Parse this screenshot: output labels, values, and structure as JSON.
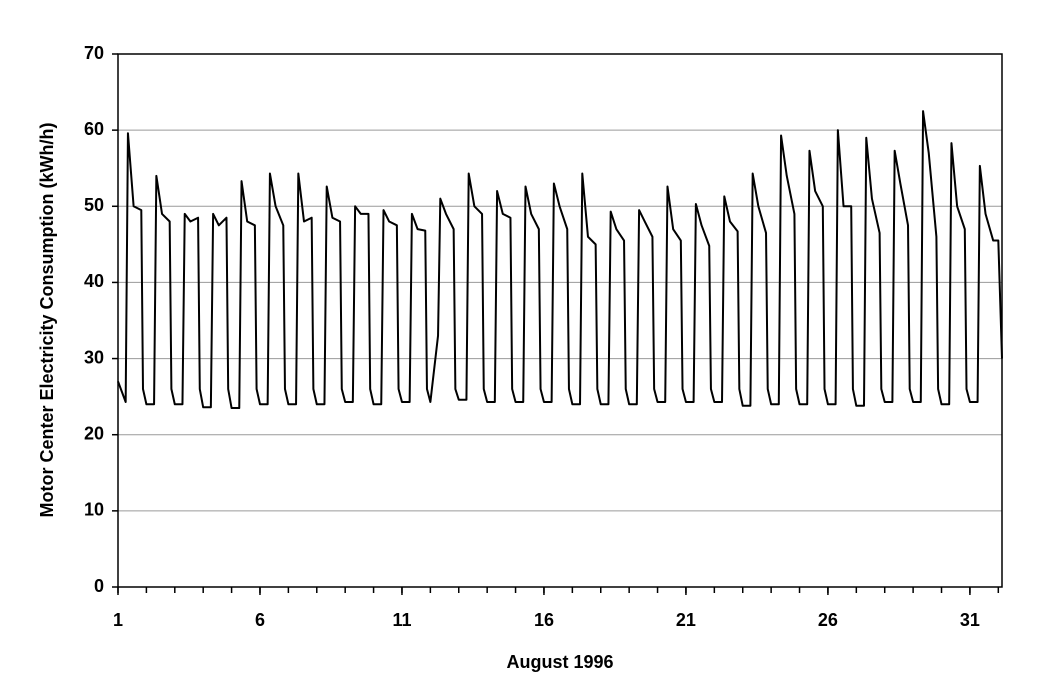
{
  "chart_data": {
    "type": "line",
    "x_label": "August 1996",
    "y_label": "Motor Center Electricity Consumption (kWh/h)",
    "color": "#000000",
    "grid": true,
    "xlim": [
      1,
      32.13
    ],
    "xticks": [
      1,
      6,
      11,
      16,
      21,
      26,
      31
    ],
    "ylim": [
      0,
      70
    ],
    "yticks": [
      0,
      10,
      20,
      30,
      40,
      50,
      60,
      70
    ],
    "x": [
      1,
      1.27,
      1.35,
      1.55,
      1.82,
      1.88,
      2,
      2.27,
      2.35,
      2.55,
      2.82,
      2.88,
      3,
      3.27,
      3.35,
      3.55,
      3.82,
      3.88,
      4,
      4.27,
      4.35,
      4.55,
      4.82,
      4.88,
      5,
      5.27,
      5.35,
      5.55,
      5.82,
      5.88,
      6,
      6.27,
      6.35,
      6.55,
      6.82,
      6.88,
      7,
      7.27,
      7.35,
      7.55,
      7.82,
      7.88,
      8,
      8.27,
      8.35,
      8.55,
      8.82,
      8.88,
      9,
      9.27,
      9.35,
      9.55,
      9.82,
      9.88,
      10,
      10.27,
      10.35,
      10.55,
      10.82,
      10.88,
      11,
      11.27,
      11.35,
      11.55,
      11.82,
      11.88,
      12,
      12.27,
      12.35,
      12.55,
      12.82,
      12.88,
      13,
      13.27,
      13.35,
      13.55,
      13.82,
      13.88,
      14,
      14.27,
      14.35,
      14.55,
      14.82,
      14.88,
      15,
      15.27,
      15.35,
      15.55,
      15.82,
      15.88,
      16,
      16.27,
      16.35,
      16.55,
      16.82,
      16.88,
      17,
      17.27,
      17.35,
      17.55,
      17.82,
      17.88,
      18,
      18.27,
      18.35,
      18.55,
      18.82,
      18.88,
      19,
      19.27,
      19.35,
      19.55,
      19.82,
      19.88,
      20,
      20.27,
      20.35,
      20.55,
      20.82,
      20.88,
      21,
      21.27,
      21.35,
      21.55,
      21.82,
      21.88,
      22,
      22.27,
      22.35,
      22.55,
      22.82,
      22.88,
      23,
      23.27,
      23.35,
      23.55,
      23.82,
      23.88,
      24,
      24.27,
      24.35,
      24.55,
      24.82,
      24.88,
      25,
      25.27,
      25.35,
      25.55,
      25.82,
      25.88,
      26,
      26.27,
      26.35,
      26.55,
      26.82,
      26.88,
      27,
      27.27,
      27.35,
      27.55,
      27.82,
      27.88,
      28,
      28.27,
      28.35,
      28.55,
      28.82,
      28.88,
      29,
      29.27,
      29.35,
      29.55,
      29.82,
      29.88,
      30,
      30.27,
      30.35,
      30.55,
      30.82,
      30.88,
      31,
      31.27,
      31.35,
      31.55,
      31.82,
      32,
      32.13
    ],
    "values": [
      27,
      24.3,
      59.6,
      50,
      49.5,
      26,
      24,
      24,
      54,
      49,
      48,
      26,
      24,
      24,
      49,
      48,
      48.5,
      26,
      23.6,
      23.6,
      49,
      47.5,
      48.5,
      26,
      23.5,
      23.5,
      53.3,
      48,
      47.5,
      26,
      24,
      24,
      54.3,
      50,
      47.5,
      26,
      24,
      24,
      54.3,
      48,
      48.5,
      26,
      24,
      24,
      52.6,
      48.5,
      48,
      26,
      24.3,
      24.3,
      50,
      49,
      49,
      26,
      24,
      24,
      49.5,
      48,
      47.5,
      26,
      24.3,
      24.3,
      49,
      47,
      46.8,
      26,
      24.3,
      33,
      51,
      49,
      47,
      26,
      24.6,
      24.6,
      54.3,
      50,
      49,
      26,
      24.3,
      24.3,
      52,
      49,
      48.5,
      26,
      24.3,
      24.3,
      52.6,
      49,
      47,
      26,
      24.3,
      24.3,
      53,
      50,
      47,
      26,
      24,
      24,
      54.3,
      46,
      45,
      26,
      24,
      24,
      49.3,
      47,
      45.5,
      26,
      24,
      24,
      49.5,
      48,
      46,
      26,
      24.3,
      24.3,
      52.6,
      47,
      45.5,
      26,
      24.3,
      24.3,
      50.3,
      47.5,
      44.8,
      26,
      24.3,
      24.3,
      51.3,
      48,
      46.7,
      26,
      23.8,
      23.8,
      54.3,
      50,
      46.5,
      26,
      24,
      24,
      59.3,
      54,
      49,
      26,
      24,
      24,
      57.3,
      52,
      50,
      26,
      24,
      24,
      60,
      50,
      50,
      26,
      23.8,
      23.8,
      59,
      51,
      46.5,
      26,
      24.3,
      24.3,
      57.3,
      53,
      47.5,
      26,
      24.3,
      24.3,
      62.5,
      57,
      46,
      26,
      24,
      24,
      58.3,
      50,
      47,
      26,
      24.3,
      24.3,
      55.3,
      49,
      45.5,
      45.5,
      30
    ]
  }
}
